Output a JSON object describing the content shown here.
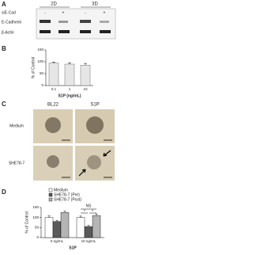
{
  "panel_a": {
    "label": "A",
    "conditions": [
      "2D",
      "3D"
    ],
    "treatment": "siE-Cad",
    "signs": [
      "-",
      "+",
      "-",
      "+"
    ],
    "bands": [
      "E-Cadherin",
      "β-Actin"
    ]
  },
  "panel_c": {
    "label": "C",
    "columns": [
      "BL22",
      "S1P"
    ],
    "rows": [
      "Medium",
      "SHE78-7"
    ]
  },
  "chart_data": [
    {
      "type": "bar",
      "label": "B",
      "y_label": "% of Control",
      "x_label": "S1P (ng/mL)",
      "categories": [
        "0.1",
        "1",
        "10"
      ],
      "values": [
        95,
        90,
        86
      ],
      "errors": [
        4,
        6,
        7
      ],
      "color": "#e6e6e6",
      "ylim": [
        0,
        150
      ],
      "yticks": [
        0,
        50,
        100,
        150
      ]
    },
    {
      "type": "grouped_bar",
      "label": "D",
      "y_label": "% of Control",
      "x_label": "S1P",
      "categories": [
        "0 ng/mL",
        "10 ng/mL"
      ],
      "series": [
        {
          "name": "Medium",
          "color": "#ffffff",
          "values": [
            100,
            100
          ],
          "errors": [
            8,
            7
          ]
        },
        {
          "name": "SHE78-7 (Pre)",
          "color": "#5a5a5a",
          "values": [
            80,
            55
          ],
          "errors": [
            6,
            5
          ]
        },
        {
          "name": "SHE78-7 (Post)",
          "color": "#b5b5b5",
          "values": [
            125,
            110
          ],
          "errors": [
            7,
            8
          ]
        }
      ],
      "ylim": [
        0,
        150
      ],
      "yticks": [
        0,
        50,
        100,
        150
      ],
      "annotations": [
        "NS",
        "*",
        "*"
      ]
    }
  ]
}
